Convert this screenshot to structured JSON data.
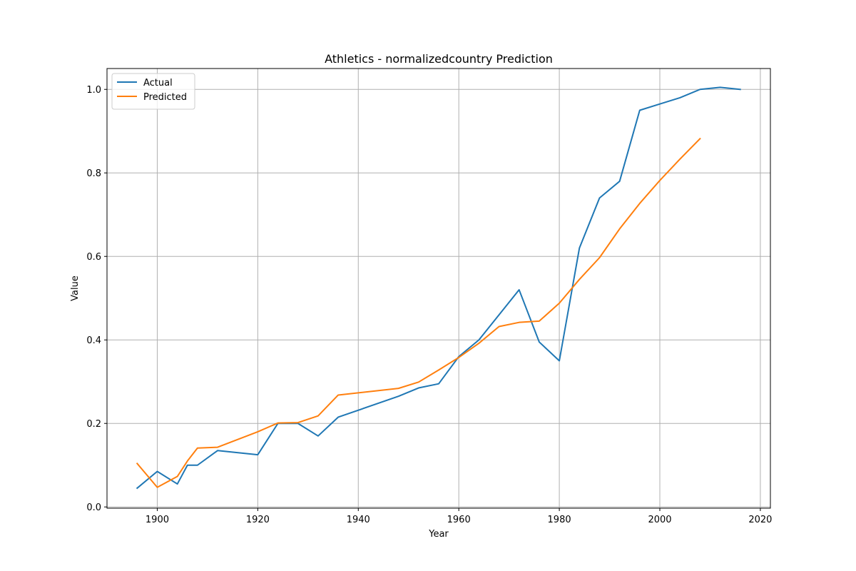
{
  "chart_data": {
    "type": "line",
    "title": "Athletics - normalizedcountry Prediction",
    "xlabel": "Year",
    "ylabel": "Value",
    "xlim": [
      1890,
      2022
    ],
    "ylim": [
      -0.003,
      1.05
    ],
    "xticks": [
      1900,
      1920,
      1940,
      1960,
      1980,
      2000,
      2020
    ],
    "yticks": [
      0.0,
      0.2,
      0.4,
      0.6,
      0.8,
      1.0
    ],
    "ytick_labels": [
      "0.0",
      "0.2",
      "0.4",
      "0.6",
      "0.8",
      "1.0"
    ],
    "grid": true,
    "legend_position": "top-left",
    "series": [
      {
        "name": "Actual",
        "color": "#1f77b4",
        "x": [
          1896,
          1900,
          1904,
          1906,
          1908,
          1912,
          1920,
          1924,
          1928,
          1932,
          1936,
          1948,
          1952,
          1956,
          1960,
          1964,
          1968,
          1972,
          1976,
          1980,
          1984,
          1988,
          1992,
          1996,
          2000,
          2004,
          2008,
          2012,
          2016
        ],
        "y": [
          0.045,
          0.085,
          0.055,
          0.1,
          0.1,
          0.135,
          0.125,
          0.2,
          0.2,
          0.17,
          0.215,
          0.265,
          0.285,
          0.295,
          0.36,
          0.4,
          0.46,
          0.52,
          0.395,
          0.35,
          0.62,
          0.74,
          0.78,
          0.95,
          0.965,
          0.98,
          1.0,
          1.005,
          1.0
        ]
      },
      {
        "name": "Predicted",
        "color": "#ff7f0e",
        "x": [
          1896,
          1900,
          1904,
          1906,
          1908,
          1912,
          1920,
          1924,
          1928,
          1932,
          1936,
          1948,
          1952,
          1956,
          1960,
          1964,
          1968,
          1972,
          1976,
          1980,
          1984,
          1988,
          1992,
          1996,
          2000,
          2004,
          2008
        ],
        "y": [
          0.104,
          0.047,
          0.073,
          0.11,
          0.141,
          0.143,
          0.18,
          0.201,
          0.202,
          0.218,
          0.268,
          0.284,
          0.299,
          0.328,
          0.358,
          0.392,
          0.432,
          0.442,
          0.445,
          0.488,
          0.545,
          0.597,
          0.666,
          0.727,
          0.782,
          0.833,
          0.882
        ]
      }
    ]
  }
}
